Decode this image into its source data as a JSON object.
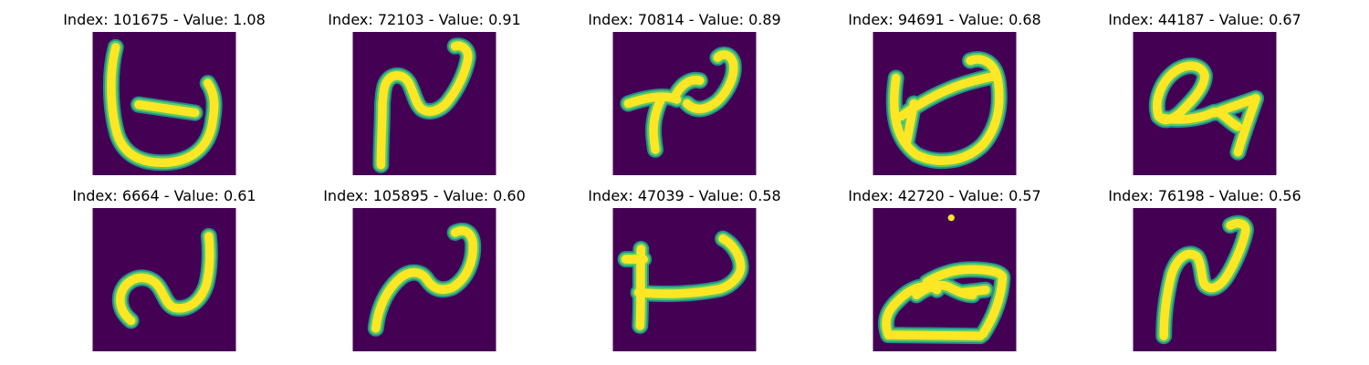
{
  "colors": {
    "background": "#440154",
    "stroke_outer": "#21918c",
    "stroke_mid": "#5ec962",
    "stroke_core": "#fde725"
  },
  "panels": [
    {
      "title": "Index: 101675 - Value: 1.08"
    },
    {
      "title": "Index: 72103 - Value: 0.91"
    },
    {
      "title": "Index: 70814 - Value: 0.89"
    },
    {
      "title": "Index: 94691 - Value: 0.68"
    },
    {
      "title": "Index: 44187 - Value: 0.67"
    },
    {
      "title": "Index: 6664 - Value: 0.61"
    },
    {
      "title": "Index: 105895 - Value: 0.60"
    },
    {
      "title": "Index: 47039 - Value: 0.58"
    },
    {
      "title": "Index: 42720 - Value: 0.57"
    },
    {
      "title": "Index: 76198 - Value: 0.56"
    }
  ]
}
